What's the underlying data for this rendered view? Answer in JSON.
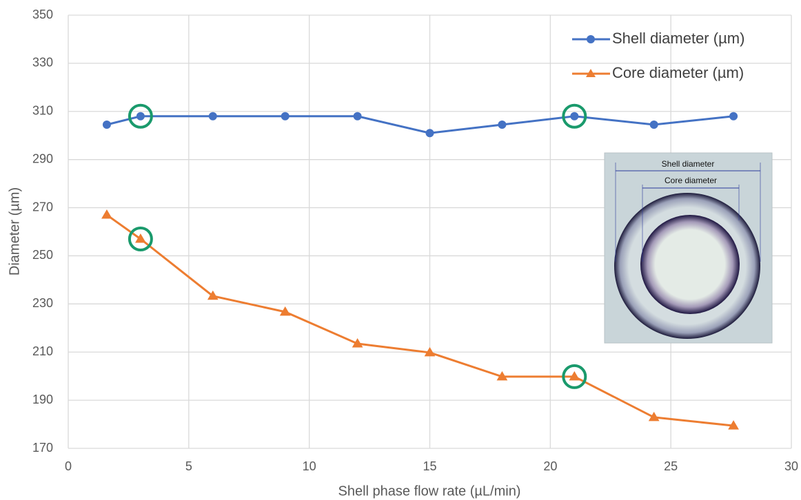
{
  "chart_data": {
    "type": "line",
    "xlabel": "Shell phase flow rate (µL/min)",
    "ylabel": "Diameter (µm)",
    "xlim": [
      0,
      30
    ],
    "xticks": [
      0,
      5,
      10,
      15,
      20,
      25,
      30
    ],
    "ylim": [
      170,
      350
    ],
    "yticks": [
      170,
      190,
      210,
      230,
      250,
      270,
      290,
      310,
      330,
      350
    ],
    "grid": true,
    "legend": "upper right",
    "series": [
      {
        "name": "Shell diameter (µm)",
        "color": "#4472c4",
        "marker": "circle",
        "x": [
          1.6,
          3,
          6,
          9,
          12,
          15,
          18,
          21,
          24.3,
          27.6
        ],
        "values": [
          304.5,
          308,
          308,
          308,
          308,
          301,
          304.5,
          308,
          304.5,
          308
        ]
      },
      {
        "name": "Core diameter (µm)",
        "color": "#ed7d31",
        "marker": "triangle",
        "x": [
          1.6,
          3,
          6,
          9,
          12,
          15,
          18,
          21,
          24.3,
          27.6
        ],
        "values": [
          267,
          257,
          233.3,
          226.7,
          213.5,
          209.8,
          199.8,
          199.8,
          182.9,
          179.4
        ]
      }
    ],
    "annotations": [
      "Shell diameter",
      "Core diameter"
    ]
  }
}
